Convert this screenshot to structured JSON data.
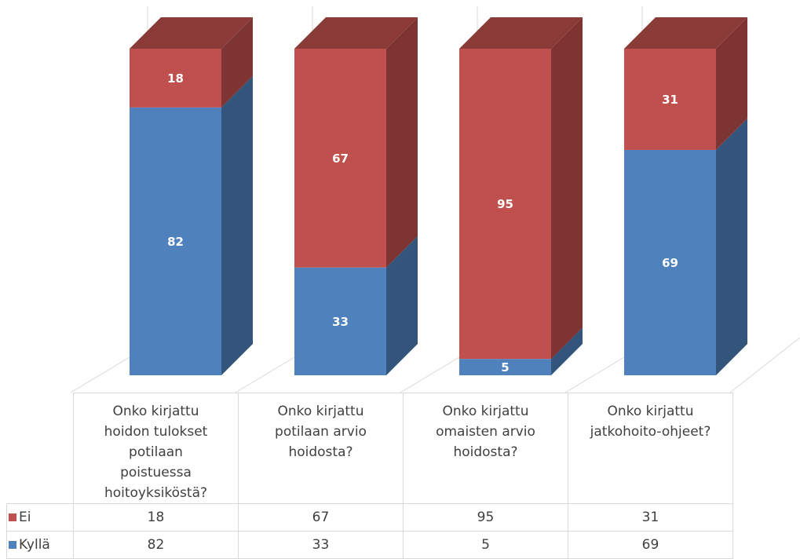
{
  "chart_data": {
    "type": "bar3d_stacked",
    "categories": [
      "Onko kirjattu hoidon tulokset potilaan poistuessa hoitoyksiköstä?",
      "Onko kirjattu potilaan arvio hoidosta?",
      "Onko kirjattu omaisten arvio hoidosta?",
      "Onko kirjattu jatkohoito-ohjeet?"
    ],
    "series": [
      {
        "name": "Ei",
        "color": "#c0504d",
        "values": [
          18,
          67,
          95,
          31
        ]
      },
      {
        "name": "Kyllä",
        "color": "#4f81bd",
        "values": [
          82,
          33,
          5,
          69
        ]
      }
    ]
  }
}
